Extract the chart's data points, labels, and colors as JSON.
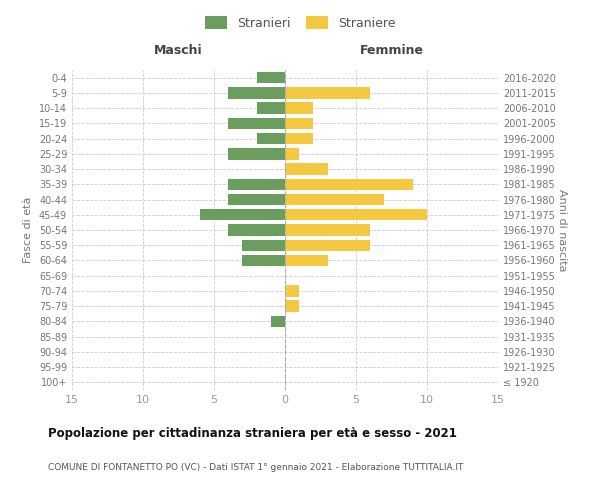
{
  "age_groups": [
    "100+",
    "95-99",
    "90-94",
    "85-89",
    "80-84",
    "75-79",
    "70-74",
    "65-69",
    "60-64",
    "55-59",
    "50-54",
    "45-49",
    "40-44",
    "35-39",
    "30-34",
    "25-29",
    "20-24",
    "15-19",
    "10-14",
    "5-9",
    "0-4"
  ],
  "birth_years": [
    "≤ 1920",
    "1921-1925",
    "1926-1930",
    "1931-1935",
    "1936-1940",
    "1941-1945",
    "1946-1950",
    "1951-1955",
    "1956-1960",
    "1961-1965",
    "1966-1970",
    "1971-1975",
    "1976-1980",
    "1981-1985",
    "1986-1990",
    "1991-1995",
    "1996-2000",
    "2001-2005",
    "2006-2010",
    "2011-2015",
    "2016-2020"
  ],
  "maschi": [
    0,
    0,
    0,
    0,
    1,
    0,
    0,
    0,
    3,
    3,
    4,
    6,
    4,
    4,
    0,
    4,
    2,
    4,
    2,
    4,
    2
  ],
  "femmine": [
    0,
    0,
    0,
    0,
    0,
    1,
    1,
    0,
    3,
    6,
    6,
    10,
    7,
    9,
    3,
    1,
    2,
    2,
    2,
    6,
    0
  ],
  "color_maschi": "#6b9e5e",
  "color_femmine": "#f5c842",
  "xlim": 15,
  "title": "Popolazione per cittadinanza straniera per età e sesso - 2021",
  "subtitle": "COMUNE DI FONTANETTO PO (VC) - Dati ISTAT 1° gennaio 2021 - Elaborazione TUTTITALIA.IT",
  "legend_maschi": "Stranieri",
  "legend_femmine": "Straniere",
  "xlabel_left": "Maschi",
  "xlabel_right": "Femmine",
  "ylabel_left": "Fasce di età",
  "ylabel_right": "Anni di nascita",
  "bg_color": "#ffffff",
  "grid_color": "#cccccc",
  "tick_color": "#999999",
  "label_color": "#777777"
}
